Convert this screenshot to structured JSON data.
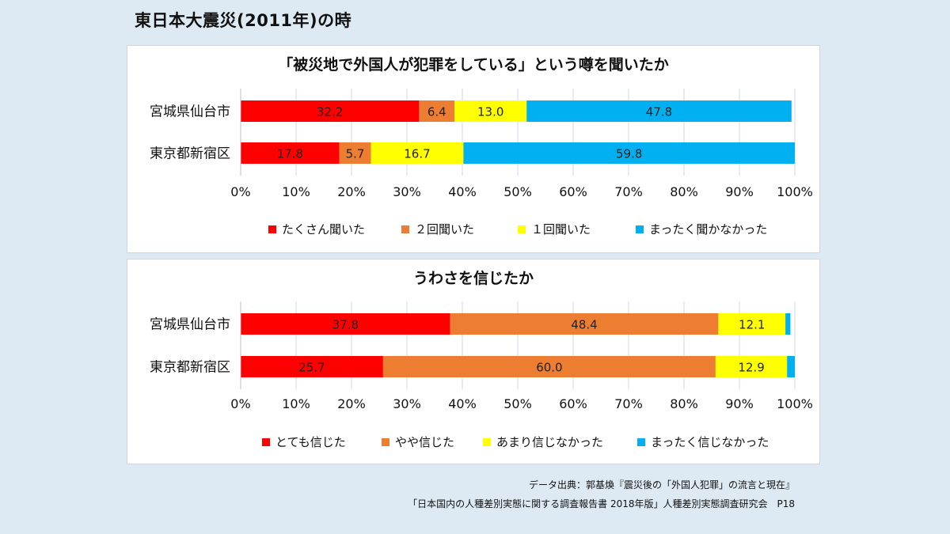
{
  "page": {
    "title": "東日本大震災(2011年)の時"
  },
  "chart_data": [
    {
      "type": "bar",
      "orientation": "horizontal",
      "stacked": true,
      "title": "「被災地で外国人が犯罪をしている」という噂を聞いたか",
      "categories": [
        "宮城県仙台市",
        "東京都新宿区"
      ],
      "series": [
        {
          "name": "たくさん聞いた",
          "color": "#ff0000",
          "values": [
            32.2,
            17.8
          ]
        },
        {
          "name": "２回聞いた",
          "color": "#ed7d31",
          "values": [
            6.4,
            5.7
          ]
        },
        {
          "name": "１回聞いた",
          "color": "#ffff00",
          "values": [
            13.0,
            16.7
          ]
        },
        {
          "name": "まったく聞かなかった",
          "color": "#00b0f0",
          "values": [
            47.8,
            59.8
          ]
        }
      ],
      "xlim": [
        0,
        100
      ],
      "xticks": [
        "0%",
        "10%",
        "20%",
        "30%",
        "40%",
        "50%",
        "60%",
        "70%",
        "80%",
        "90%",
        "100%"
      ],
      "grid": true,
      "legend": "bottom"
    },
    {
      "type": "bar",
      "orientation": "horizontal",
      "stacked": true,
      "title": "うわさを信じたか",
      "categories": [
        "宮城県仙台市",
        "東京都新宿区"
      ],
      "series": [
        {
          "name": "とても信じた",
          "color": "#ff0000",
          "values": [
            37.8,
            25.7
          ]
        },
        {
          "name": "やや信じた",
          "color": "#ed7d31",
          "values": [
            48.4,
            60.0
          ]
        },
        {
          "name": "あまり信じなかった",
          "color": "#ffff00",
          "values": [
            12.1,
            12.9
          ]
        },
        {
          "name": "まったく信じなかった",
          "color": "#00b0f0",
          "values": [
            0.9,
            1.4
          ]
        }
      ],
      "data_labels": [
        [
          "37.8",
          "48.4",
          "12.1",
          ""
        ],
        [
          "25.7",
          "60.0",
          "12.9",
          ""
        ]
      ],
      "xlim": [
        0,
        100
      ],
      "xticks": [
        "0%",
        "10%",
        "20%",
        "30%",
        "40%",
        "50%",
        "60%",
        "70%",
        "80%",
        "90%",
        "100%"
      ],
      "grid": true,
      "legend": "bottom"
    }
  ],
  "source": {
    "line1": "データ出典：郭基煥『震災後の「外国人犯罪」の流言と現在』",
    "line2": "「日本国内の人種差別実態に関する調査報告書 2018年版」人種差別実態調査研究会　P18"
  }
}
